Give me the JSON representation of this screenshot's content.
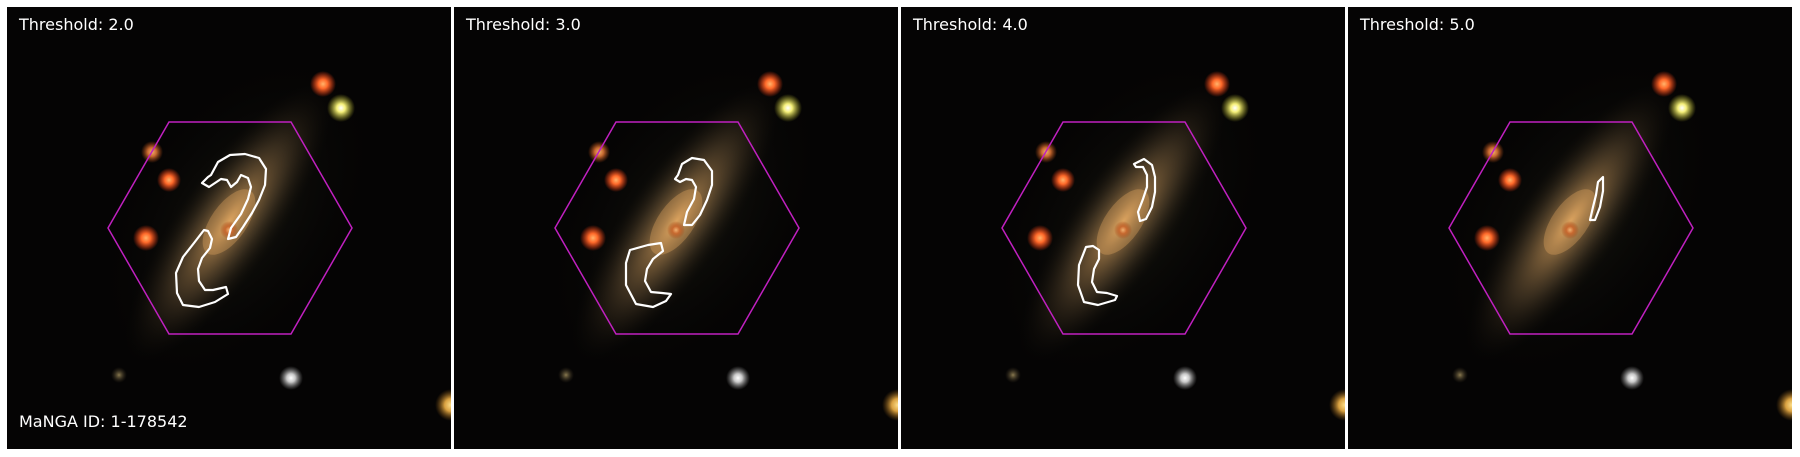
{
  "panels": [
    {
      "title": "Threshold: 2.0",
      "threshold": 2.0
    },
    {
      "title": "Threshold: 3.0",
      "threshold": 3.0
    },
    {
      "title": "Threshold: 4.0",
      "threshold": 4.0
    },
    {
      "title": "Threshold: 5.0",
      "threshold": 5.0
    }
  ],
  "manga_id_label": "MaNGA ID: 1-178542",
  "colors": {
    "background": "#050404",
    "hexagon": "#c020c0",
    "contour": "#ffffff",
    "galaxy": "#b88a52",
    "text": "#ffffff",
    "divider": "#ffffff"
  }
}
